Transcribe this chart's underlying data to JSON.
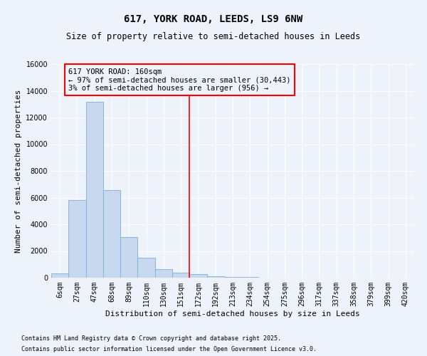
{
  "title": "617, YORK ROAD, LEEDS, LS9 6NW",
  "subtitle": "Size of property relative to semi-detached houses in Leeds",
  "xlabel": "Distribution of semi-detached houses by size in Leeds",
  "ylabel": "Number of semi-detached properties",
  "bin_labels": [
    "6sqm",
    "27sqm",
    "47sqm",
    "68sqm",
    "89sqm",
    "110sqm",
    "130sqm",
    "151sqm",
    "172sqm",
    "192sqm",
    "213sqm",
    "234sqm",
    "254sqm",
    "275sqm",
    "296sqm",
    "317sqm",
    "337sqm",
    "358sqm",
    "379sqm",
    "399sqm",
    "420sqm"
  ],
  "bar_values": [
    300,
    5800,
    13200,
    6550,
    3050,
    1480,
    620,
    380,
    260,
    120,
    70,
    30,
    10,
    5,
    2,
    1,
    1,
    0,
    0,
    0,
    0
  ],
  "bar_color": "#c8d9ef",
  "bar_edge_color": "#7aaed6",
  "vline_x": 7.5,
  "vline_color": "red",
  "annotation_title": "617 YORK ROAD: 160sqm",
  "annotation_line1": "← 97% of semi-detached houses are smaller (30,443)",
  "annotation_line2": "3% of semi-detached houses are larger (956) →",
  "annotation_box_color": "red",
  "ylim": [
    0,
    16000
  ],
  "yticks": [
    0,
    2000,
    4000,
    6000,
    8000,
    10000,
    12000,
    14000,
    16000
  ],
  "footnote1": "Contains HM Land Registry data © Crown copyright and database right 2025.",
  "footnote2": "Contains public sector information licensed under the Open Government Licence v3.0.",
  "background_color": "#eef2fa",
  "grid_color": "#ffffff",
  "title_fontsize": 10,
  "subtitle_fontsize": 8.5,
  "axis_label_fontsize": 8,
  "tick_fontsize": 7,
  "annotation_fontsize": 7.5,
  "footnote_fontsize": 6
}
